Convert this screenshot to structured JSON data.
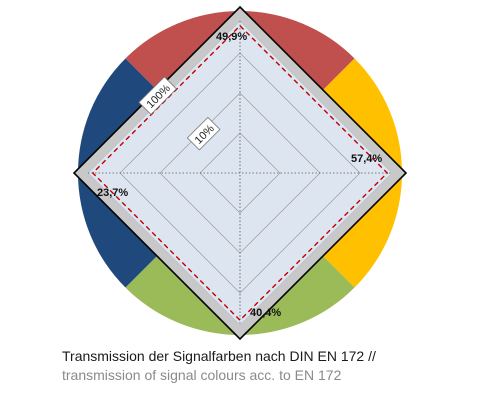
{
  "chart_data": {
    "type": "radar",
    "axes": [
      {
        "key": "red",
        "color": "#c0504d"
      },
      {
        "key": "yellow",
        "color": "#ffc000"
      },
      {
        "key": "green",
        "color": "#9bbb59"
      },
      {
        "key": "blue",
        "color": "#1f497d"
      }
    ],
    "values": [
      49.9,
      57.4,
      40.4,
      23.7
    ],
    "value_labels": [
      "49,9%",
      "57,4%",
      "40,4%",
      "23,7%"
    ],
    "rings": [
      {
        "value": 10,
        "label": "10%"
      },
      {
        "value": 100,
        "label": "100%"
      }
    ],
    "threshold_color": "#c00000",
    "frame_color": "#c8c8c8",
    "inner_fill": "#dde6f0"
  },
  "caption": {
    "line1": "Transmission der Signalfarben nach DIN EN 172 //",
    "line2": "transmission of signal colours acc. to EN 172"
  }
}
